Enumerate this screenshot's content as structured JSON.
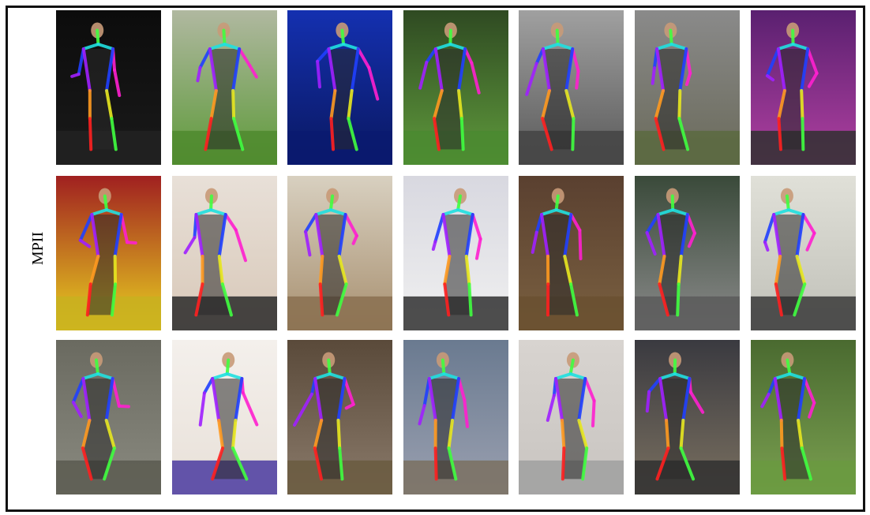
{
  "figure": {
    "row_label": "MPII",
    "colors": {
      "frame": "#111111",
      "limb_palette": [
        "#ff2020",
        "#ff9a20",
        "#e8e820",
        "#40ff40",
        "#20e0e0",
        "#2040ff",
        "#a020ff",
        "#ff20d0"
      ]
    },
    "tiles": [
      {
        "row": 1,
        "col": 1,
        "bg": [
          "#0c0c0c",
          "#1a1a1a"
        ],
        "ground": "#222"
      },
      {
        "row": 1,
        "col": 2,
        "bg": [
          "#b0b8a0",
          "#5e9a3a"
        ],
        "ground": "#4f8a2e"
      },
      {
        "row": 1,
        "col": 3,
        "bg": [
          "#1430b0",
          "#0a1860"
        ],
        "ground": "#0a1a70"
      },
      {
        "row": 1,
        "col": 4,
        "bg": [
          "#2f4a22",
          "#5f9a3c"
        ],
        "ground": "#4a8a30"
      },
      {
        "row": 1,
        "col": 5,
        "bg": [
          "#a0a0a0",
          "#5a5a5a"
        ],
        "ground": "#444"
      },
      {
        "row": 1,
        "col": 6,
        "bg": [
          "#8a8a8a",
          "#6a6a5a"
        ],
        "ground": "#5a6a40"
      },
      {
        "row": 1,
        "col": 7,
        "bg": [
          "#5a2070",
          "#b040a0"
        ],
        "ground": "#303030"
      },
      {
        "row": 2,
        "col": 1,
        "bg": [
          "#a02020",
          "#e8d020"
        ],
        "ground": "#c8b020"
      },
      {
        "row": 2,
        "col": 2,
        "bg": [
          "#e8e0d8",
          "#d8c8b8"
        ],
        "ground": "#2a2a2a"
      },
      {
        "row": 2,
        "col": 3,
        "bg": [
          "#d8d0c0",
          "#a89070"
        ],
        "ground": "#8a7050"
      },
      {
        "row": 2,
        "col": 4,
        "bg": [
          "#d8d8e0",
          "#f0f0f0"
        ],
        "ground": "#303030"
      },
      {
        "row": 2,
        "col": 5,
        "bg": [
          "#5a4030",
          "#7a6040"
        ],
        "ground": "#6a5030"
      },
      {
        "row": 2,
        "col": 6,
        "bg": [
          "#3a4a3a",
          "#8a8a8a"
        ],
        "ground": "#5a5a5a"
      },
      {
        "row": 2,
        "col": 7,
        "bg": [
          "#e0e0d8",
          "#c0c0b8"
        ],
        "ground": "#3a3a3a"
      },
      {
        "row": 3,
        "col": 1,
        "bg": [
          "#6a6a60",
          "#8a8a80"
        ],
        "ground": "#5a5a50"
      },
      {
        "row": 3,
        "col": 2,
        "bg": [
          "#f4f0ec",
          "#e8e0d8"
        ],
        "ground": "#4a3aa0"
      },
      {
        "row": 3,
        "col": 3,
        "bg": [
          "#5a4a3a",
          "#8a7a6a"
        ],
        "ground": "#6a5a40"
      },
      {
        "row": 3,
        "col": 4,
        "bg": [
          "#6a7a90",
          "#9aa0b0"
        ],
        "ground": "#7a7060"
      },
      {
        "row": 3,
        "col": 5,
        "bg": [
          "#d8d4d0",
          "#c8c4c0"
        ],
        "ground": "#a0a0a0"
      },
      {
        "row": 3,
        "col": 6,
        "bg": [
          "#3a3a40",
          "#7a7060"
        ],
        "ground": "#303030"
      },
      {
        "row": 3,
        "col": 7,
        "bg": [
          "#4a6a30",
          "#7aa050"
        ],
        "ground": "#6a9a40"
      }
    ]
  }
}
